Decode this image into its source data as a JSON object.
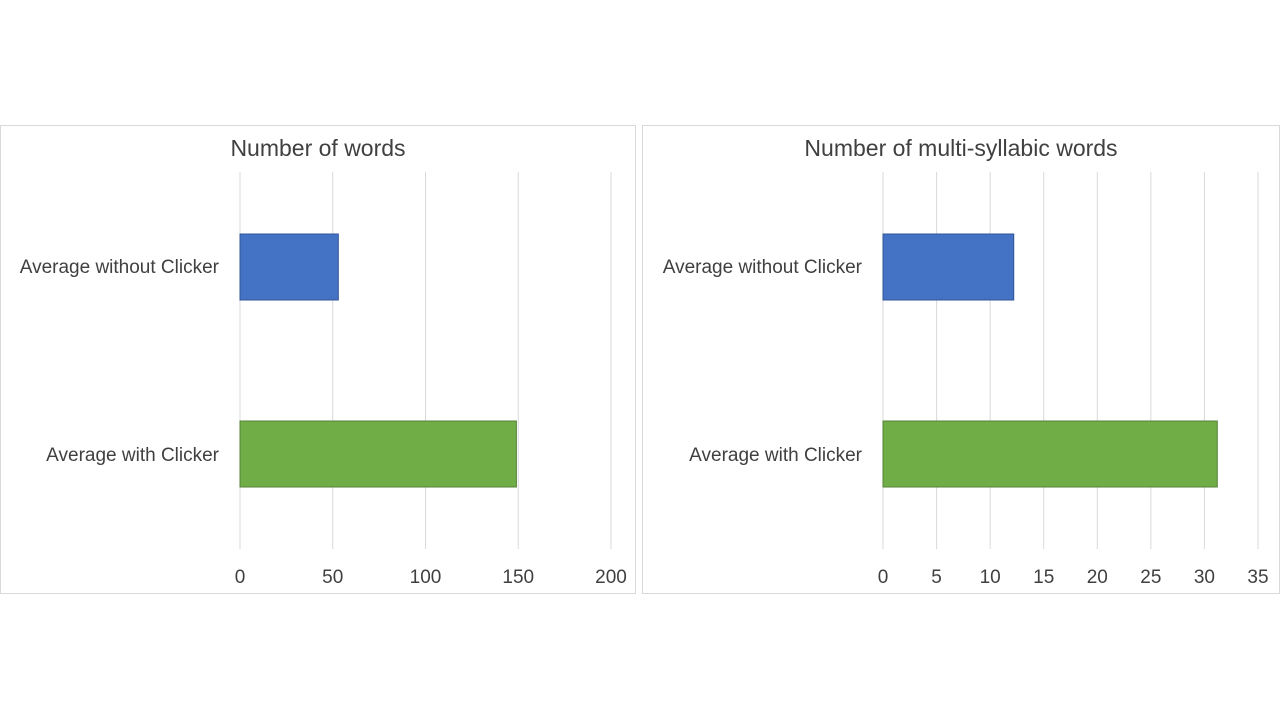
{
  "colors": {
    "without_clicker": "#4472C4",
    "with_clicker": "#70AD47"
  },
  "chart_data": [
    {
      "type": "bar",
      "orientation": "horizontal",
      "title": "Number of words",
      "categories": [
        "Average without Clicker",
        "Average with Clicker"
      ],
      "values": [
        53,
        149
      ],
      "xlim": [
        0,
        200
      ],
      "ticks": [
        0,
        50,
        100,
        150,
        200
      ],
      "grid": true,
      "legend": "none"
    },
    {
      "type": "bar",
      "orientation": "horizontal",
      "title": "Number of multi-syllabic words",
      "categories": [
        "Average without Clicker",
        "Average with Clicker"
      ],
      "values": [
        12.2,
        31.2
      ],
      "xlim": [
        0,
        35
      ],
      "ticks": [
        0,
        5,
        10,
        15,
        20,
        25,
        30,
        35
      ],
      "grid": true,
      "legend": "none"
    }
  ]
}
